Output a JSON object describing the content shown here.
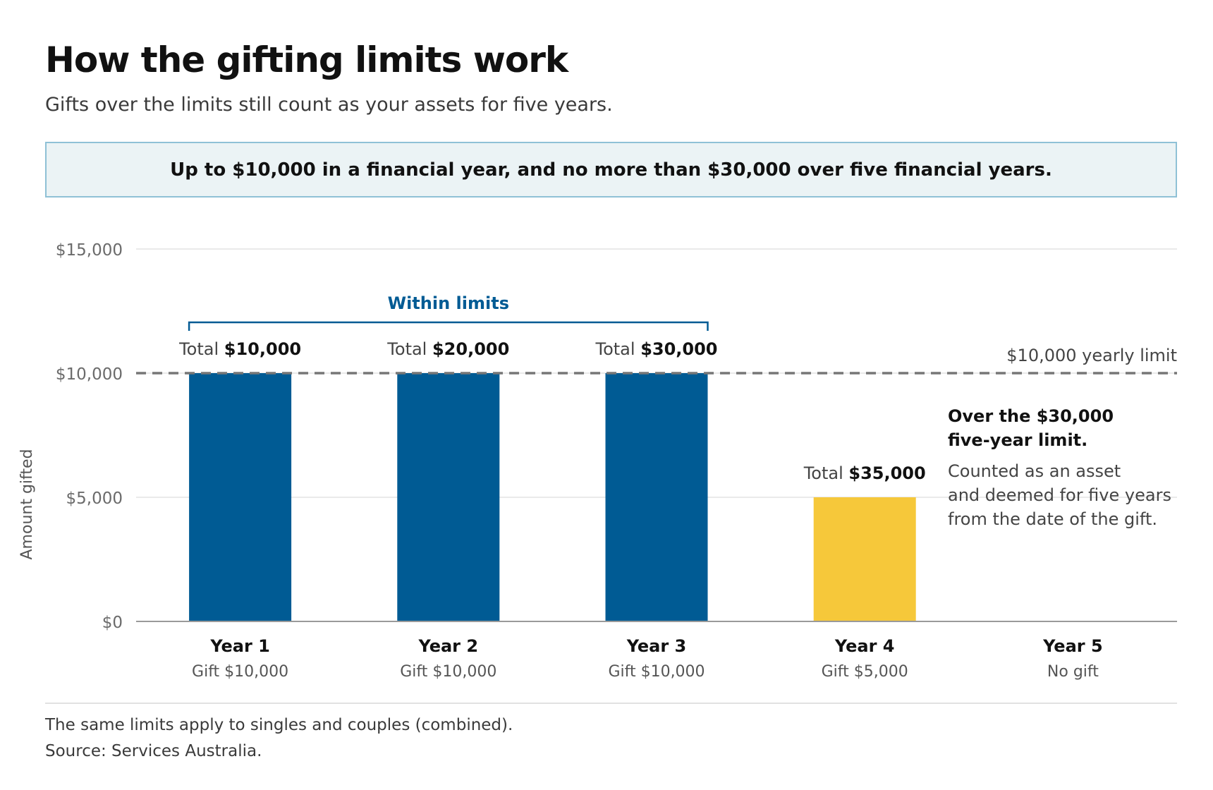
{
  "header": {
    "title": "How the gifting limits work",
    "subtitle": "Gifts over the limits still count as your assets for five years."
  },
  "callout": {
    "text": "Up to $10,000 in a financial year, and no more than $30,000 over five financial years."
  },
  "chart_data": {
    "type": "bar",
    "categories": [
      "Year 1",
      "Year 2",
      "Year 3",
      "Year 4",
      "Year 5"
    ],
    "category_sublabels": [
      "Gift $10,000",
      "Gift $10,000",
      "Gift $10,000",
      "Gift $5,000",
      "No gift"
    ],
    "values": [
      10000,
      10000,
      10000,
      5000,
      0
    ],
    "total_prefix": "Total",
    "totals": [
      "$10,000",
      "$20,000",
      "$30,000",
      "$35,000",
      null
    ],
    "bar_colors": [
      "#005b94",
      "#005b94",
      "#005b94",
      "#f6c83a",
      null
    ],
    "ylabel": "Amount gifted",
    "ylim": [
      0,
      15000
    ],
    "yticks": [
      0,
      5000,
      10000,
      15000
    ],
    "ytick_labels": [
      "$0",
      "$5,000",
      "$10,000",
      "$15,000"
    ],
    "grid": true,
    "reference_line": {
      "value": 10000,
      "label": "$10,000 yearly limit",
      "style": "dashed",
      "color": "#777777"
    },
    "bracket": {
      "label": "Within limits",
      "from_category": 0,
      "to_category": 2,
      "color": "#005b94"
    },
    "annotation": {
      "title_lines": [
        "Over the $30,000",
        "five-year limit."
      ],
      "body_lines": [
        "Counted as an asset",
        "and deemed for five years",
        "from the date of the gift."
      ]
    }
  },
  "footer": {
    "note": "The same limits apply to singles and couples (combined).",
    "source": "Source: Services Australia."
  }
}
